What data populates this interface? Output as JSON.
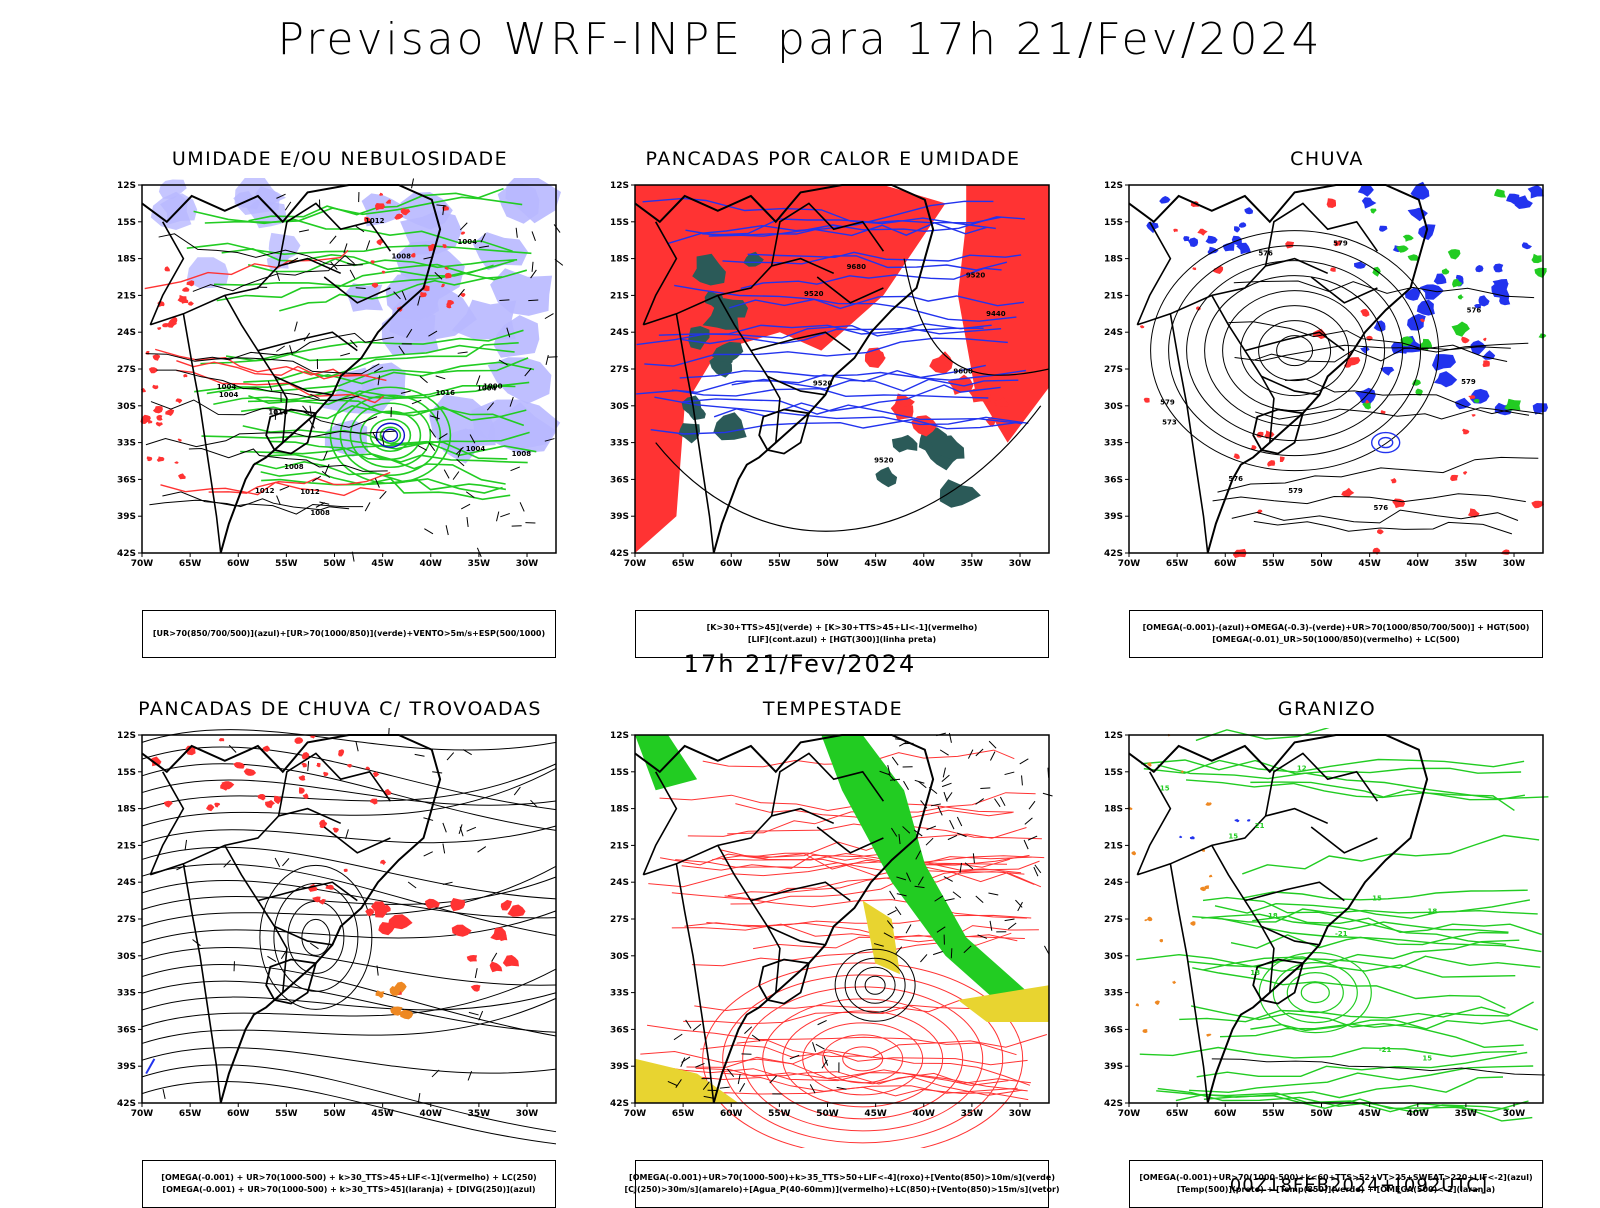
{
  "main_title": "Previsao WRF-INPE  para 17h 21/Fev/2024",
  "mid_title": "17h 21/Fev/2024",
  "footer": "00Z18FEB2024+[092UTC]",
  "lat_labels": [
    "12S",
    "15S",
    "18S",
    "21S",
    "24S",
    "27S",
    "30S",
    "33S",
    "36S",
    "39S",
    "42S"
  ],
  "lon_labels": [
    "70W",
    "65W",
    "60W",
    "55W",
    "50W",
    "45W",
    "40W",
    "35W",
    "30W"
  ],
  "panels": [
    {
      "title": "UMIDADE E/OU NEBULOSIDADE",
      "legend": [
        "[UR>70(850/700/500)](azul)+[UR>70(1000/850)](verde)+VENTO>5m/s+ESP(500/1000)"
      ],
      "contour_labels": [
        "1004",
        "1008",
        "1004",
        "1000",
        "1004",
        "1008",
        "1012",
        "1004",
        "1008",
        "1004",
        "1008",
        "1012",
        "1016",
        "1012",
        "1016"
      ]
    },
    {
      "title": "PANCADAS POR CALOR E UMIDADE",
      "legend": [
        "[K>30+TTS>45](verde) + [K>30+TTS>45+LI<-1](vermelho)",
        "[LIF](cont.azul) + [HGT(300)](linha preta)"
      ],
      "contour_labels": [
        "9600",
        "9680",
        "9520",
        "9520",
        "9520",
        "9440",
        "9520"
      ]
    },
    {
      "title": "CHUVA",
      "legend": [
        "[OMEGA(-0.001)-(azul)+OMEGA(-0.3)-(verde)+UR>70(1000/850/700/500)] + HGT(500)",
        "[OMEGA(-0.01)_UR>50(1000/850)(vermelho) + LC(500)"
      ],
      "contour_labels": [
        "576",
        "579",
        "576",
        "579",
        "573",
        "576",
        "579",
        "576",
        "579"
      ]
    },
    {
      "title": "PANCADAS DE CHUVA C/ TROVOADAS",
      "legend": [
        "[OMEGA(-0.001) + UR>70(1000-500) + k>30_TTS>45+LIF<-1](vermelho) + LC(250)",
        "[OMEGA(-0.001) + UR>70(1000-500) + k>30_TTS>45](laranja) + [DIVG(250)](azul)"
      ],
      "contour_labels": []
    },
    {
      "title": "TEMPESTADE",
      "legend": [
        "[OMEGA(-0.001)+UR>70(1000-500)+k>35_TTS>50+LIF<-4](roxo)+[Vento(850)>10m/s](verde)",
        "[CJ(250)>30m/s](amarelo)+[Agua_P(40-60mm)](vermelho)+LC(850)+[Vento(850)>15m/s](vetor)"
      ],
      "contour_labels": []
    },
    {
      "title": "GRANIZO",
      "legend": [
        "[OMEGA(-0.001)+UR>70(1000-500)+k<60+TTS>52+VT>25+SWEAT>220+LIF<-2](azul)",
        "[Temp(500)](preto) + [Temp(850)](verde) + [OMEGA(500)<-2](laranja)"
      ],
      "contour_labels": [
        "-21",
        "-21",
        "15",
        "18",
        "21",
        "15",
        "18",
        "12",
        "15",
        "18",
        "15"
      ]
    }
  ],
  "colors": {
    "blue": "#2233ee",
    "green": "#22cc22",
    "red": "#ff3333",
    "darkgreen": "#2b5a58",
    "lavender": "#b8b8ff",
    "yellow": "#e8d430",
    "orange": "#ee8822",
    "black": "#000000"
  }
}
